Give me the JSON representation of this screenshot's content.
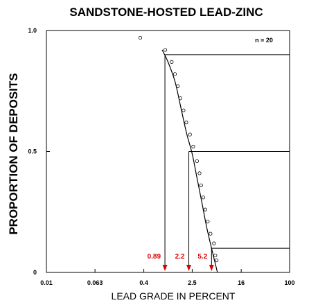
{
  "chart_data": {
    "type": "scatter",
    "title": "SANDSTONE-HOSTED LEAD-ZINC",
    "xlabel": "LEAD GRADE IN PERCENT",
    "ylabel": "PROPORTION OF DEPOSITS",
    "x_scale": "log",
    "xlim": [
      0.01,
      100
    ],
    "ylim": [
      0,
      1.0
    ],
    "x_ticks": [
      "0.01",
      "0.063",
      "0.4",
      "2.5",
      "16",
      "100"
    ],
    "y_ticks": [
      "0",
      "0.5",
      "1.0"
    ],
    "annotation": "n = 20",
    "colors": {
      "axes": "#000000",
      "highlight": "#dd0000"
    },
    "observed": {
      "x": [
        0.35,
        0.9,
        1.15,
        1.3,
        1.45,
        1.6,
        1.8,
        2.0,
        2.3,
        2.6,
        3.0,
        3.3,
        3.5,
        3.8,
        4.1,
        4.5,
        5.0,
        5.7,
        6.0,
        6.3
      ],
      "y": [
        0.97,
        0.92,
        0.87,
        0.82,
        0.77,
        0.72,
        0.67,
        0.62,
        0.57,
        0.52,
        0.46,
        0.41,
        0.36,
        0.31,
        0.26,
        0.21,
        0.16,
        0.12,
        0.07,
        0.05
      ]
    },
    "fitted_curve": {
      "x": [
        0.8,
        1.0,
        1.3,
        1.6,
        2.0,
        2.5,
        3.0,
        3.6,
        4.3,
        5.2,
        6.5
      ],
      "y": [
        0.92,
        0.87,
        0.79,
        0.69,
        0.58,
        0.49,
        0.39,
        0.29,
        0.19,
        0.1,
        0.0
      ]
    },
    "percentile_lines": [
      {
        "proportion": 0.9,
        "grade": 0.89,
        "label": "0.89"
      },
      {
        "proportion": 0.5,
        "grade": 2.2,
        "label": "2.2"
      },
      {
        "proportion": 0.1,
        "grade": 5.2,
        "label": "5.2"
      }
    ]
  }
}
